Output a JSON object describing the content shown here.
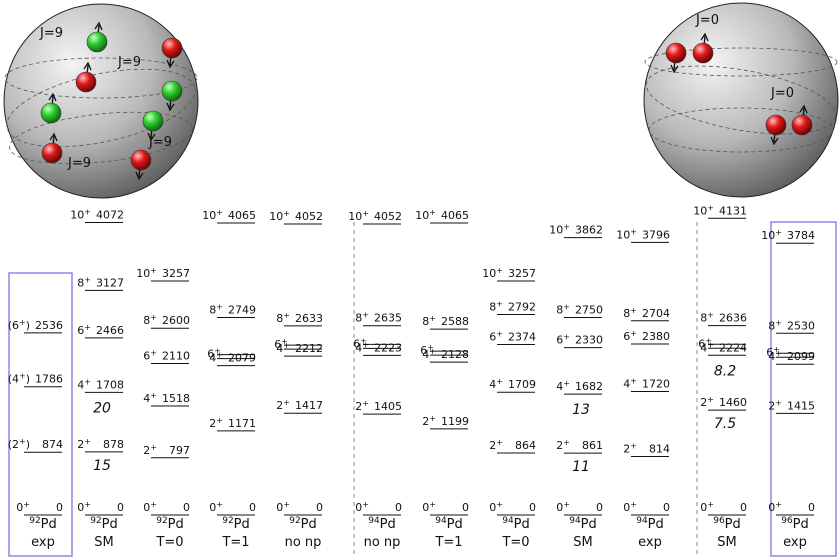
{
  "spheres": [
    {
      "id": "left",
      "labels": [
        "J=9",
        "J=9",
        "J=9",
        "J=9"
      ],
      "particles": [
        {
          "color": "#22bb22",
          "spin": "up"
        },
        {
          "color": "#dd1111",
          "spin": "down"
        },
        {
          "color": "#dd1111",
          "spin": "up"
        },
        {
          "color": "#22bb22",
          "spin": "down"
        },
        {
          "color": "#22bb22",
          "spin": "up"
        },
        {
          "color": "#22bb22",
          "spin": "down"
        },
        {
          "color": "#dd1111",
          "spin": "up"
        },
        {
          "color": "#dd1111",
          "spin": "down"
        }
      ]
    },
    {
      "id": "right",
      "labels": [
        "J=0",
        "J=0"
      ],
      "particles": [
        {
          "color": "#dd1111",
          "spin": "down"
        },
        {
          "color": "#dd1111",
          "spin": "up"
        },
        {
          "color": "#dd1111",
          "spin": "down"
        },
        {
          "color": "#dd1111",
          "spin": "up"
        }
      ]
    }
  ],
  "columns": [
    {
      "nucleus_mass": "92",
      "nucleus_symbol": "Pd",
      "label": "exp",
      "boxed": true,
      "levels": [
        {
          "spin": "0+",
          "energy": "0"
        },
        {
          "spin": "(2+)",
          "energy": "874"
        },
        {
          "spin": "(4+)",
          "energy": "1786"
        },
        {
          "spin": "(6+)",
          "energy": "2536"
        }
      ],
      "values": []
    },
    {
      "nucleus_mass": "92",
      "nucleus_symbol": "Pd",
      "label": "SM",
      "boxed": false,
      "levels": [
        {
          "spin": "0+",
          "energy": "0"
        },
        {
          "spin": "2+",
          "energy": "878"
        },
        {
          "spin": "4+",
          "energy": "1708"
        },
        {
          "spin": "6+",
          "energy": "2466"
        },
        {
          "spin": "8+",
          "energy": "3127"
        },
        {
          "spin": "10+",
          "energy": "4072"
        }
      ],
      "values": [
        "15",
        "20"
      ]
    },
    {
      "nucleus_mass": "92",
      "nucleus_symbol": "Pd",
      "label": "T=0",
      "boxed": false,
      "levels": [
        {
          "spin": "0+",
          "energy": "0"
        },
        {
          "spin": "2+",
          "energy": "797"
        },
        {
          "spin": "4+",
          "energy": "1518"
        },
        {
          "spin": "6+",
          "energy": "2110"
        },
        {
          "spin": "8+",
          "energy": "2600"
        },
        {
          "spin": "10+",
          "energy": "3257"
        }
      ],
      "values": []
    },
    {
      "nucleus_mass": "92",
      "nucleus_symbol": "Pd",
      "label": "T=1",
      "boxed": false,
      "levels": [
        {
          "spin": "0+",
          "energy": "0"
        },
        {
          "spin": "2+",
          "energy": "1171"
        },
        {
          "spin": "4+",
          "energy": "2079"
        },
        {
          "spin": "6+",
          "energy": ""
        },
        {
          "spin": "8+",
          "energy": "2749"
        },
        {
          "spin": "10+",
          "energy": "4065"
        }
      ],
      "values": []
    },
    {
      "nucleus_mass": "92",
      "nucleus_symbol": "Pd",
      "label": "no np",
      "boxed": false,
      "levels": [
        {
          "spin": "0+",
          "energy": "0"
        },
        {
          "spin": "2+",
          "energy": "1417"
        },
        {
          "spin": "4+",
          "energy": "2212"
        },
        {
          "spin": "6+",
          "energy": ""
        },
        {
          "spin": "8+",
          "energy": "2633"
        },
        {
          "spin": "10+",
          "energy": "4052"
        }
      ],
      "values": []
    },
    {
      "nucleus_mass": "94",
      "nucleus_symbol": "Pd",
      "label": "no np",
      "boxed": false,
      "levels": [
        {
          "spin": "0+",
          "energy": "0"
        },
        {
          "spin": "2+",
          "energy": "1405"
        },
        {
          "spin": "4+",
          "energy": "2223"
        },
        {
          "spin": "6+",
          "energy": ""
        },
        {
          "spin": "8+",
          "energy": "2635"
        },
        {
          "spin": "10+",
          "energy": "4052"
        }
      ],
      "values": []
    },
    {
      "nucleus_mass": "94",
      "nucleus_symbol": "Pd",
      "label": "T=1",
      "boxed": false,
      "levels": [
        {
          "spin": "0+",
          "energy": "0"
        },
        {
          "spin": "2+",
          "energy": "1199"
        },
        {
          "spin": "4+",
          "energy": "2128"
        },
        {
          "spin": "6+",
          "energy": ""
        },
        {
          "spin": "8+",
          "energy": "2588"
        },
        {
          "spin": "10+",
          "energy": "4065"
        }
      ],
      "values": []
    },
    {
      "nucleus_mass": "94",
      "nucleus_symbol": "Pd",
      "label": "T=0",
      "boxed": false,
      "levels": [
        {
          "spin": "0+",
          "energy": "0"
        },
        {
          "spin": "2+",
          "energy": "864"
        },
        {
          "spin": "4+",
          "energy": "1709"
        },
        {
          "spin": "6+",
          "energy": "2374"
        },
        {
          "spin": "8+",
          "energy": "2792"
        },
        {
          "spin": "10+",
          "energy": "3257"
        }
      ],
      "values": []
    },
    {
      "nucleus_mass": "94",
      "nucleus_symbol": "Pd",
      "label": "SM",
      "boxed": false,
      "levels": [
        {
          "spin": "0+",
          "energy": "0"
        },
        {
          "spin": "2+",
          "energy": "861"
        },
        {
          "spin": "4+",
          "energy": "1682"
        },
        {
          "spin": "6+",
          "energy": "2330"
        },
        {
          "spin": "8+",
          "energy": "2750"
        },
        {
          "spin": "10+",
          "energy": "3862"
        }
      ],
      "values": [
        "11",
        "13"
      ]
    },
    {
      "nucleus_mass": "94",
      "nucleus_symbol": "Pd",
      "label": "exp",
      "boxed": false,
      "levels": [
        {
          "spin": "0+",
          "energy": "0"
        },
        {
          "spin": "2+",
          "energy": "814"
        },
        {
          "spin": "4+",
          "energy": "1720"
        },
        {
          "spin": "6+",
          "energy": "2380"
        },
        {
          "spin": "8+",
          "energy": "2704"
        },
        {
          "spin": "10+",
          "energy": "3796"
        }
      ],
      "values": []
    },
    {
      "nucleus_mass": "96",
      "nucleus_symbol": "Pd",
      "label": "SM",
      "boxed": false,
      "levels": [
        {
          "spin": "0+",
          "energy": "0"
        },
        {
          "spin": "2+",
          "energy": "1460"
        },
        {
          "spin": "4+",
          "energy": "2224"
        },
        {
          "spin": "6+",
          "energy": ""
        },
        {
          "spin": "8+",
          "energy": "2636"
        },
        {
          "spin": "10+",
          "energy": "4131"
        }
      ],
      "values": [
        "7.5",
        "8.2"
      ]
    },
    {
      "nucleus_mass": "96",
      "nucleus_symbol": "Pd",
      "label": "exp",
      "boxed": true,
      "levels": [
        {
          "spin": "0+",
          "energy": "0"
        },
        {
          "spin": "2+",
          "energy": "1415"
        },
        {
          "spin": "4+",
          "energy": "2099"
        },
        {
          "spin": "6+",
          "energy": ""
        },
        {
          "spin": "8+",
          "energy": "2530"
        },
        {
          "spin": "10+",
          "energy": "3784"
        }
      ],
      "values": []
    }
  ],
  "colors": {
    "frame": "#8888ee",
    "divider": "#888888",
    "level": "#111111"
  }
}
